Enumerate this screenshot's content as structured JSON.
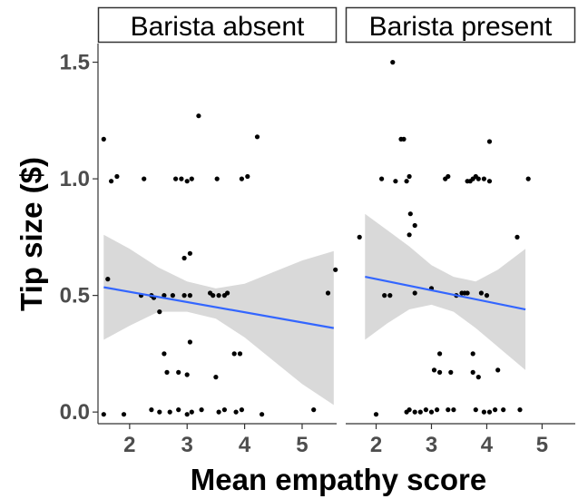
{
  "chart_data": {
    "type": "scatter",
    "xlabel": "Mean empathy score",
    "ylabel": "Tip size ($)",
    "xlim": [
      1.45,
      5.6
    ],
    "ylim": [
      -0.05,
      1.58
    ],
    "x_ticks": [
      2,
      3,
      4,
      5
    ],
    "y_ticks": [
      0.0,
      0.5,
      1.0,
      1.5
    ],
    "y_tick_labels": [
      "0.0",
      "0.5",
      "1.0",
      "1.5"
    ],
    "grid": false,
    "colors": {
      "points": "#000000",
      "fit_line": "#3366ff",
      "ribbon": "#d9d9d9",
      "strip_bg": "#ffffff"
    },
    "panels": [
      {
        "strip": "Barista absent",
        "points": [
          [
            1.55,
            1.17
          ],
          [
            1.62,
            0.57
          ],
          [
            1.68,
            0.99
          ],
          [
            1.78,
            1.01
          ],
          [
            2.25,
            1.0
          ],
          [
            2.2,
            0.5
          ],
          [
            2.38,
            0.5
          ],
          [
            2.42,
            0.49
          ],
          [
            2.52,
            0.43
          ],
          [
            2.6,
            0.5
          ],
          [
            2.8,
            1.0
          ],
          [
            2.9,
            1.0
          ],
          [
            3.0,
            0.99
          ],
          [
            3.08,
            1.0
          ],
          [
            2.75,
            0.5
          ],
          [
            2.95,
            0.5
          ],
          [
            3.05,
            0.5
          ],
          [
            2.95,
            0.66
          ],
          [
            3.05,
            0.68
          ],
          [
            3.2,
            1.27
          ],
          [
            3.52,
            1.0
          ],
          [
            3.95,
            1.0
          ],
          [
            4.05,
            1.01
          ],
          [
            4.22,
            1.18
          ],
          [
            3.45,
            0.5
          ],
          [
            3.55,
            0.5
          ],
          [
            3.65,
            0.5
          ],
          [
            3.7,
            0.51
          ],
          [
            3.4,
            0.51
          ],
          [
            3.82,
            0.25
          ],
          [
            3.92,
            0.25
          ],
          [
            2.6,
            0.25
          ],
          [
            2.65,
            0.17
          ],
          [
            2.85,
            0.17
          ],
          [
            3.0,
            0.16
          ],
          [
            3.05,
            0.3
          ],
          [
            3.5,
            0.15
          ],
          [
            5.45,
            0.51
          ],
          [
            5.58,
            0.61
          ],
          [
            1.55,
            -0.01
          ],
          [
            1.9,
            -0.01
          ],
          [
            2.38,
            0.01
          ],
          [
            2.52,
            0.0
          ],
          [
            2.7,
            0.0
          ],
          [
            2.85,
            0.01
          ],
          [
            3.0,
            -0.01
          ],
          [
            3.08,
            0.0
          ],
          [
            3.25,
            0.01
          ],
          [
            3.55,
            0.0
          ],
          [
            3.65,
            0.01
          ],
          [
            3.85,
            0.0
          ],
          [
            3.95,
            0.01
          ],
          [
            4.3,
            -0.01
          ],
          [
            5.2,
            0.01
          ]
        ],
        "fit": {
          "x": [
            1.55,
            5.55
          ],
          "y": [
            0.535,
            0.36
          ]
        },
        "ribbon": {
          "x": [
            1.55,
            2.0,
            2.5,
            3.0,
            3.5,
            4.0,
            4.5,
            5.0,
            5.55
          ],
          "lower": [
            0.31,
            0.37,
            0.43,
            0.43,
            0.4,
            0.32,
            0.22,
            0.12,
            0.03
          ],
          "upper": [
            0.76,
            0.7,
            0.62,
            0.56,
            0.53,
            0.55,
            0.6,
            0.65,
            0.69
          ]
        }
      },
      {
        "strip": "Barista present",
        "points": [
          [
            1.7,
            0.75
          ],
          [
            2.1,
            1.0
          ],
          [
            2.15,
            0.5
          ],
          [
            2.25,
            0.5
          ],
          [
            2.3,
            1.5
          ],
          [
            2.35,
            0.99
          ],
          [
            2.45,
            1.17
          ],
          [
            2.5,
            1.17
          ],
          [
            2.55,
            0.99
          ],
          [
            2.6,
            1.01
          ],
          [
            2.62,
            0.85
          ],
          [
            2.6,
            0.76
          ],
          [
            2.7,
            0.8
          ],
          [
            2.7,
            0.51
          ],
          [
            3.0,
            0.53
          ],
          [
            3.25,
            1.0
          ],
          [
            3.3,
            1.01
          ],
          [
            3.45,
            0.5
          ],
          [
            3.55,
            0.51
          ],
          [
            3.6,
            0.51
          ],
          [
            3.65,
            0.51
          ],
          [
            3.65,
            0.99
          ],
          [
            3.7,
            0.99
          ],
          [
            3.75,
            1.0
          ],
          [
            3.8,
            1.01
          ],
          [
            3.85,
            1.0
          ],
          [
            3.95,
            1.0
          ],
          [
            4.05,
            0.99
          ],
          [
            4.05,
            1.16
          ],
          [
            3.9,
            0.51
          ],
          [
            4.0,
            0.5
          ],
          [
            4.55,
            0.75
          ],
          [
            4.75,
            1.0
          ],
          [
            3.15,
            0.25
          ],
          [
            3.75,
            0.25
          ],
          [
            3.05,
            0.18
          ],
          [
            3.15,
            0.17
          ],
          [
            3.35,
            0.17
          ],
          [
            3.75,
            0.17
          ],
          [
            3.85,
            0.15
          ],
          [
            4.2,
            0.18
          ],
          [
            2.0,
            -0.01
          ],
          [
            2.55,
            0.0
          ],
          [
            2.6,
            0.01
          ],
          [
            2.7,
            0.0
          ],
          [
            2.8,
            0.0
          ],
          [
            2.9,
            0.01
          ],
          [
            3.0,
            0.0
          ],
          [
            3.1,
            0.01
          ],
          [
            3.3,
            0.01
          ],
          [
            3.4,
            0.01
          ],
          [
            3.8,
            0.01
          ],
          [
            3.95,
            0.0
          ],
          [
            4.05,
            0.0
          ],
          [
            4.15,
            0.01
          ],
          [
            4.3,
            0.01
          ],
          [
            4.6,
            0.01
          ]
        ],
        "fit": {
          "x": [
            1.8,
            4.7
          ],
          "y": [
            0.58,
            0.44
          ]
        },
        "ribbon": {
          "x": [
            1.8,
            2.2,
            2.6,
            3.0,
            3.4,
            3.8,
            4.2,
            4.7
          ],
          "lower": [
            0.31,
            0.38,
            0.44,
            0.46,
            0.43,
            0.36,
            0.28,
            0.18
          ],
          "upper": [
            0.85,
            0.78,
            0.71,
            0.63,
            0.58,
            0.56,
            0.61,
            0.7
          ]
        }
      }
    ]
  }
}
